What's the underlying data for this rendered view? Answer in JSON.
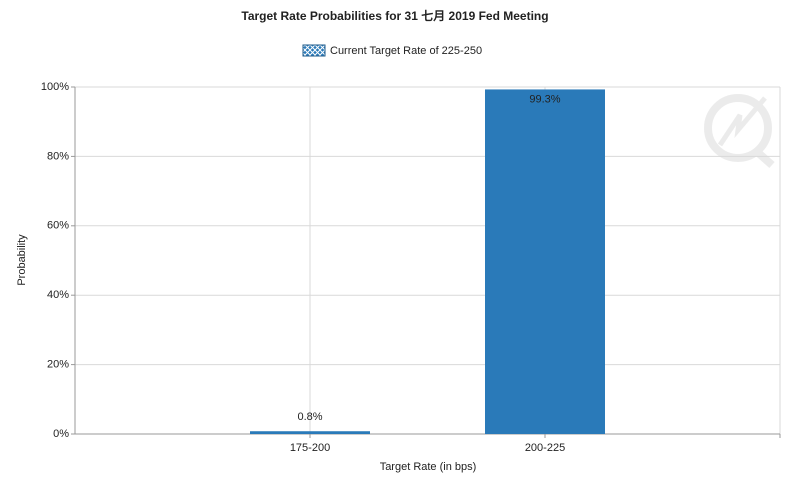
{
  "chart_data": {
    "type": "bar",
    "title": "Target Rate Probabilities for 31 七月 2019  Fed Meeting",
    "x_label": "Target Rate (in bps)",
    "y_label": "Probability",
    "categories": [
      "175-200",
      "200-225"
    ],
    "series": [
      {
        "name": "Current Target Rate of 225-250",
        "color": "#2a7ab9",
        "values": [
          0.8,
          99.3
        ],
        "value_labels": [
          "0.8%",
          "99.3%"
        ]
      }
    ],
    "ylim": [
      0,
      100
    ],
    "yticks": [
      {
        "value": 0,
        "label": "0%"
      },
      {
        "value": 20,
        "label": "20%"
      },
      {
        "value": 40,
        "label": "40%"
      },
      {
        "value": 60,
        "label": "60%"
      },
      {
        "value": 80,
        "label": "80%"
      },
      {
        "value": 100,
        "label": "100%"
      }
    ],
    "grid": true
  }
}
